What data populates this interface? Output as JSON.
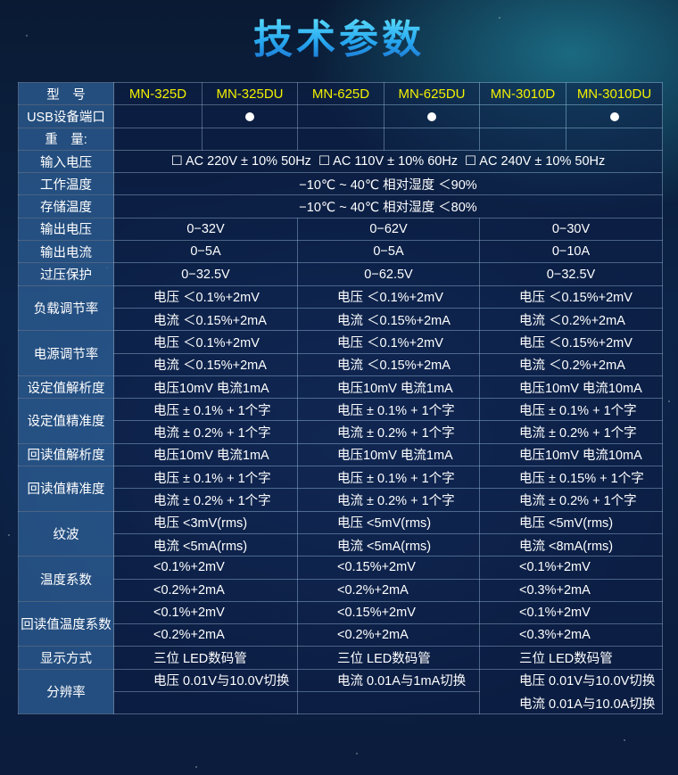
{
  "title": "技术参数",
  "header": {
    "label": "型　号",
    "models": [
      "MN-325D",
      "MN-325DU",
      "MN-625D",
      "MN-625DU",
      "MN-3010D",
      "MN-3010DU"
    ]
  },
  "usb": {
    "label": "USB设备端口",
    "has_usb": [
      false,
      true,
      false,
      true,
      false,
      true
    ]
  },
  "weight": {
    "label": "重　量:"
  },
  "input_voltage": {
    "label": "输入电压",
    "options": [
      "☐ AC 220V ± 10% 50Hz",
      "☐ AC 110V ± 10% 60Hz",
      "☐ AC 240V ± 10% 50Hz"
    ]
  },
  "work_temp": {
    "label": "工作温度",
    "value": "−10℃ ~ 40℃ 相对湿度 ＜90%"
  },
  "storage_temp": {
    "label": "存储温度",
    "value": "−10℃ ~ 40℃ 相对湿度 ＜80%"
  },
  "group_rows": [
    {
      "label": "输出电压",
      "align": "c",
      "lines": [
        [
          "0−32V",
          "0−62V",
          "0−30V"
        ]
      ]
    },
    {
      "label": "输出电流",
      "align": "c",
      "lines": [
        [
          "0−5A",
          "0−5A",
          "0−10A"
        ]
      ]
    },
    {
      "label": "过压保护",
      "align": "c",
      "lines": [
        [
          "0−32.5V",
          "0−62.5V",
          "0−32.5V"
        ]
      ]
    },
    {
      "label": "负载调节率",
      "lines": [
        [
          "电压 ＜0.1%+2mV",
          "电压 ＜0.1%+2mV",
          "电压 ＜0.15%+2mV"
        ],
        [
          "电流 ＜0.15%+2mA",
          "电流 ＜0.15%+2mA",
          "电流 ＜0.2%+2mA"
        ]
      ]
    },
    {
      "label": "电源调节率",
      "lines": [
        [
          "电压 ＜0.1%+2mV",
          "电压 ＜0.1%+2mV",
          "电压 ＜0.15%+2mV"
        ],
        [
          "电流 ＜0.15%+2mA",
          "电流 ＜0.15%+2mA",
          "电流 ＜0.2%+2mA"
        ]
      ]
    },
    {
      "label": "设定值解析度",
      "lines": [
        [
          "电压10mV 电流1mA",
          "电压10mV 电流1mA",
          "电压10mV 电流10mA"
        ]
      ]
    },
    {
      "label": "设定值精准度",
      "lines": [
        [
          "电压 ± 0.1% + 1个字",
          "电压 ± 0.1% + 1个字",
          "电压 ± 0.1% + 1个字"
        ],
        [
          "电流 ± 0.2% + 1个字",
          "电流 ± 0.2% + 1个字",
          "电流 ± 0.2% + 1个字"
        ]
      ]
    },
    {
      "label": "回读值解析度",
      "lines": [
        [
          "电压10mV 电流1mA",
          "电压10mV 电流1mA",
          "电压10mV 电流10mA"
        ]
      ]
    },
    {
      "label": "回读值精准度",
      "lines": [
        [
          "电压 ± 0.1% + 1个字",
          "电压 ± 0.1% + 1个字",
          "电压 ± 0.15% + 1个字"
        ],
        [
          "电流 ± 0.2% + 1个字",
          "电流 ± 0.2% + 1个字",
          "电流 ± 0.2% + 1个字"
        ]
      ]
    },
    {
      "label": "纹波",
      "lines": [
        [
          "电压 <3mV(rms)",
          "电压 <5mV(rms)",
          "电压 <5mV(rms)"
        ],
        [
          "电流 <5mA(rms)",
          "电流 <5mA(rms)",
          "电流 <8mA(rms)"
        ]
      ]
    },
    {
      "label": "温度系数",
      "lines": [
        [
          "<0.1%+2mV",
          "<0.15%+2mV",
          "<0.1%+2mV"
        ],
        [
          "<0.2%+2mA",
          "<0.2%+2mA",
          "<0.3%+2mA"
        ]
      ]
    },
    {
      "label": "回读值温度系数",
      "lines": [
        [
          "<0.1%+2mV",
          "<0.15%+2mV",
          "<0.1%+2mV"
        ],
        [
          "<0.2%+2mA",
          "<0.2%+2mA",
          "<0.3%+2mA"
        ]
      ]
    },
    {
      "label": "显示方式",
      "lines": [
        [
          "三位 LED数码管",
          "三位 LED数码管",
          "三位 LED数码管"
        ]
      ]
    },
    {
      "label": "分辨率",
      "lines": [
        [
          "电压 0.01V与10.0V切换",
          "电流 0.01A与1mA切换",
          "电压 0.01V与10.0V切换"
        ],
        [
          "",
          "",
          "电流 0.01A与10.0A切换"
        ]
      ]
    }
  ]
}
